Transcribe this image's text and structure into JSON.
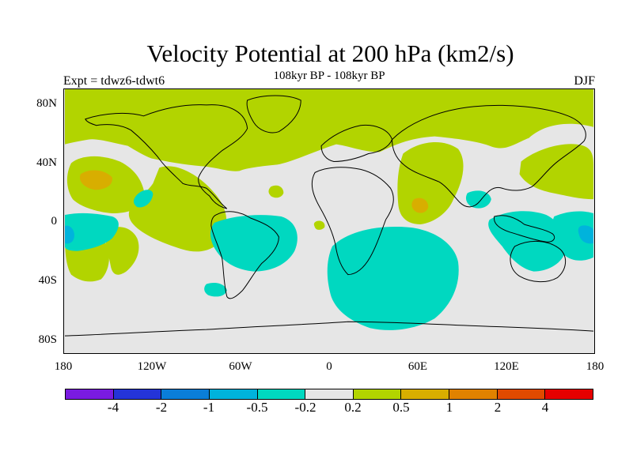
{
  "title": "Velocity Potential at 200 hPa (km2/s)",
  "subtitle": "108kyr BP - 108kyr BP",
  "left_label": "Expt = tdwz6-tdwt6",
  "right_label": "DJF",
  "lat_ticks": [
    "80N",
    "40N",
    "0",
    "40S",
    "80S"
  ],
  "lon_ticks": [
    "180",
    "120W",
    "60W",
    "0",
    "60E",
    "120E",
    "180"
  ],
  "colors": {
    "background_neutral": "#e6e6e6",
    "land_line": "#000000",
    "c_m4": "#7a1be0",
    "c_m2": "#2434d8",
    "c_m1": "#0a7ed8",
    "c_m05": "#00b3dc",
    "c_m02": "#00d8c0",
    "c_neutral": "#e6e6e6",
    "c_p02": "#b2d400",
    "c_p05": "#d8ae00",
    "c_p1": "#e08200",
    "c_p2": "#e04a00",
    "c_p4": "#e60000"
  },
  "colorbar": {
    "colors": [
      "#7a1be0",
      "#2434d8",
      "#0a7ed8",
      "#00b3dc",
      "#00d8c0",
      "#e6e6e6",
      "#b2d400",
      "#d8ae00",
      "#e08200",
      "#e04a00",
      "#e60000"
    ],
    "labels": [
      "-4",
      "-2",
      "-1",
      "-0.5",
      "-0.2",
      "0.2",
      "0.5",
      "1",
      "2",
      "4"
    ]
  }
}
